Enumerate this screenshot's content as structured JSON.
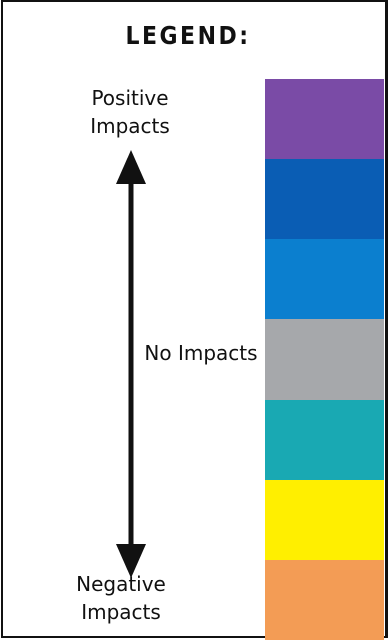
{
  "legend": {
    "title": "LEGEND:",
    "positive_label": "Positive Impacts",
    "none_label": "No Impacts",
    "negative_label": "Negative Impacts",
    "swatches": [
      {
        "color": "#7a4ba6"
      },
      {
        "color": "#0a5db4"
      },
      {
        "color": "#0b7fcf"
      },
      {
        "color": "#a6a8ab"
      },
      {
        "color": "#19a9b3"
      },
      {
        "color": "#ffef00"
      },
      {
        "color": "#f39c55"
      }
    ]
  },
  "colors": {
    "frame": "#111111",
    "arrow": "#111111",
    "background": "#ffffff"
  }
}
